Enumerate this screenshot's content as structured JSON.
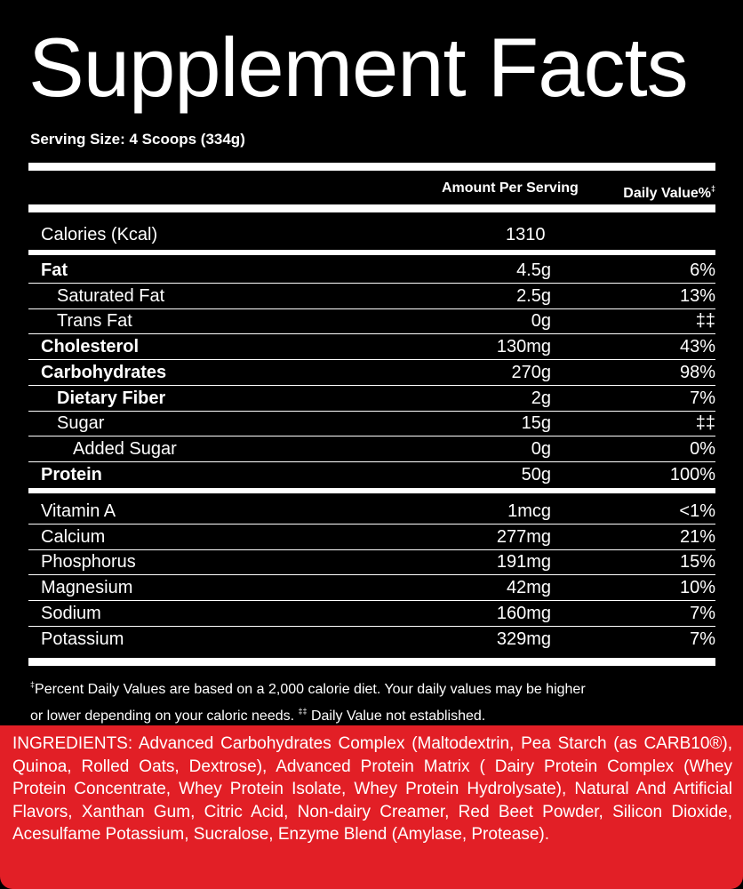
{
  "title": "Supplement Facts",
  "serving_size": "Serving Size: 4 Scoops (334g)",
  "headers": {
    "amount": "Amount Per Serving",
    "daily_value": "Daily Value%",
    "daily_value_mark": "‡"
  },
  "calories": {
    "name": "Calories (Kcal)",
    "amount": "1310"
  },
  "macros": [
    {
      "name": "Fat",
      "amount": "4.5g",
      "dv": "6%",
      "bold": true,
      "indent": 0
    },
    {
      "name": "Saturated Fat",
      "amount": "2.5g",
      "dv": "13%",
      "bold": false,
      "indent": 1
    },
    {
      "name": "Trans Fat",
      "amount": "0g",
      "dv": "‡‡",
      "bold": false,
      "indent": 1
    },
    {
      "name": "Cholesterol",
      "amount": "130mg",
      "dv": "43%",
      "bold": true,
      "indent": 0
    },
    {
      "name": "Carbohydrates",
      "amount": "270g",
      "dv": "98%",
      "bold": true,
      "indent": 0
    },
    {
      "name": "Dietary Fiber",
      "amount": "2g",
      "dv": "7%",
      "bold": true,
      "indent": 1
    },
    {
      "name": "Sugar",
      "amount": "15g",
      "dv": "‡‡",
      "bold": false,
      "indent": 1
    },
    {
      "name": "Added Sugar",
      "amount": "0g",
      "dv": "0%",
      "bold": false,
      "indent": 2
    },
    {
      "name": "Protein",
      "amount": "50g",
      "dv": "100%",
      "bold": true,
      "indent": 0
    }
  ],
  "minerals": [
    {
      "name": "Vitamin A",
      "amount": "1mcg",
      "dv": "<1%"
    },
    {
      "name": "Calcium",
      "amount": "277mg",
      "dv": "21%"
    },
    {
      "name": "Phosphorus",
      "amount": "191mg",
      "dv": "15%"
    },
    {
      "name": "Magnesium",
      "amount": "42mg",
      "dv": "10%"
    },
    {
      "name": "Sodium",
      "amount": "160mg",
      "dv": "7%"
    },
    {
      "name": "Potassium",
      "amount": "329mg",
      "dv": "7%"
    }
  ],
  "footnote": {
    "mark1": "‡",
    "line1": "Percent Daily Values are based on a 2,000 calorie diet. Your daily values may be higher",
    "line2": "or lower depending on your caloric needs. ",
    "mark2": "‡‡",
    "line2_end": " Daily Value not established."
  },
  "ingredients": "INGREDIENTS: Advanced Carbohydrates Complex (Maltodextrin, Pea Starch (as CARB10®), Quinoa, Rolled Oats, Dextrose), Advanced Protein Matrix ( Dairy Protein Complex (Whey Protein Concentrate, Whey Protein Isolate, Whey Protein Hydrolysate), Natural And Artificial Flavors, Xanthan Gum, Citric Acid, Non-dairy Creamer, Red Beet Powder, Silicon Dioxide, Acesulfame Potassium, Sucralose, Enzyme Blend (Amylase, Protease).",
  "colors": {
    "background": "#000000",
    "text": "#ffffff",
    "ingredients_bg": "#e21f26"
  }
}
